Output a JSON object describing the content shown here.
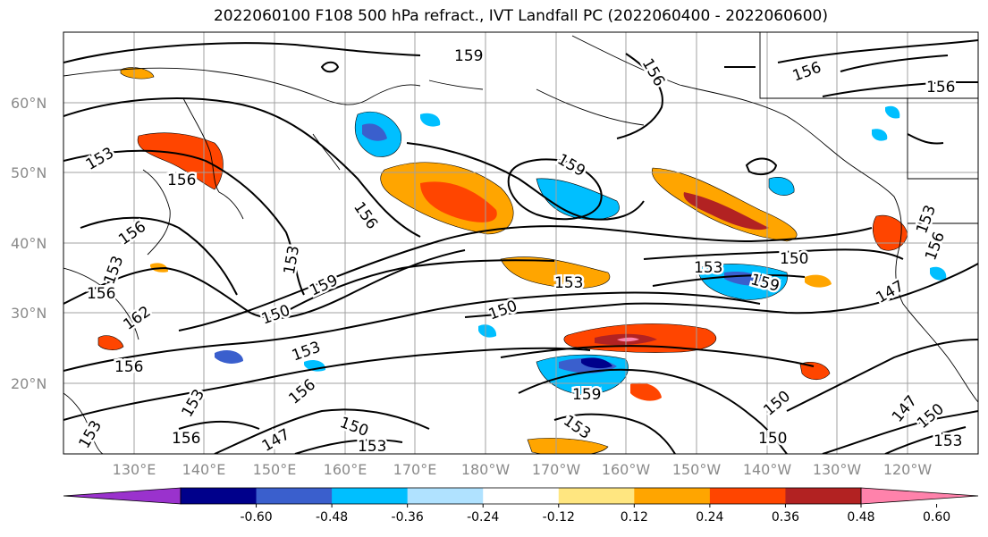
{
  "map": {
    "title": "2022060100 F108 500 hPa refract., IVT Landfall PC (2022060400 - 2022060600)",
    "lat_labels": [
      "60°N",
      "50°N",
      "40°N",
      "30°N",
      "20°N"
    ],
    "lon_labels": [
      "130°E",
      "140°E",
      "150°E",
      "160°E",
      "170°E",
      "180°W",
      "170°W",
      "160°W",
      "150°W",
      "140°W",
      "130°W",
      "120°W"
    ],
    "contour_labels": [
      "159",
      "156",
      "156",
      "156",
      "153",
      "156",
      "159",
      "156",
      "156",
      "153",
      "153",
      "156",
      "156",
      "153",
      "150",
      "153",
      "150",
      "159",
      "153",
      "162",
      "159",
      "150",
      "156",
      "153",
      "147",
      "156",
      "153",
      "159",
      "150",
      "147",
      "150",
      "147",
      "150",
      "153",
      "153",
      "150",
      "153",
      "153",
      "156"
    ],
    "colorbar": {
      "tick_labels": [
        "-0.60",
        "-0.48",
        "-0.36",
        "-0.24",
        "-0.12",
        "0.12",
        "0.24",
        "0.36",
        "0.48",
        "0.60"
      ],
      "colors": [
        "#9a32cd",
        "#00008b",
        "#3a5fcd",
        "#00bfff",
        "#b0e2ff",
        "#ffffff",
        "#ffe680",
        "#ffa500",
        "#ff4500",
        "#b22222",
        "#ff82ab"
      ]
    }
  }
}
